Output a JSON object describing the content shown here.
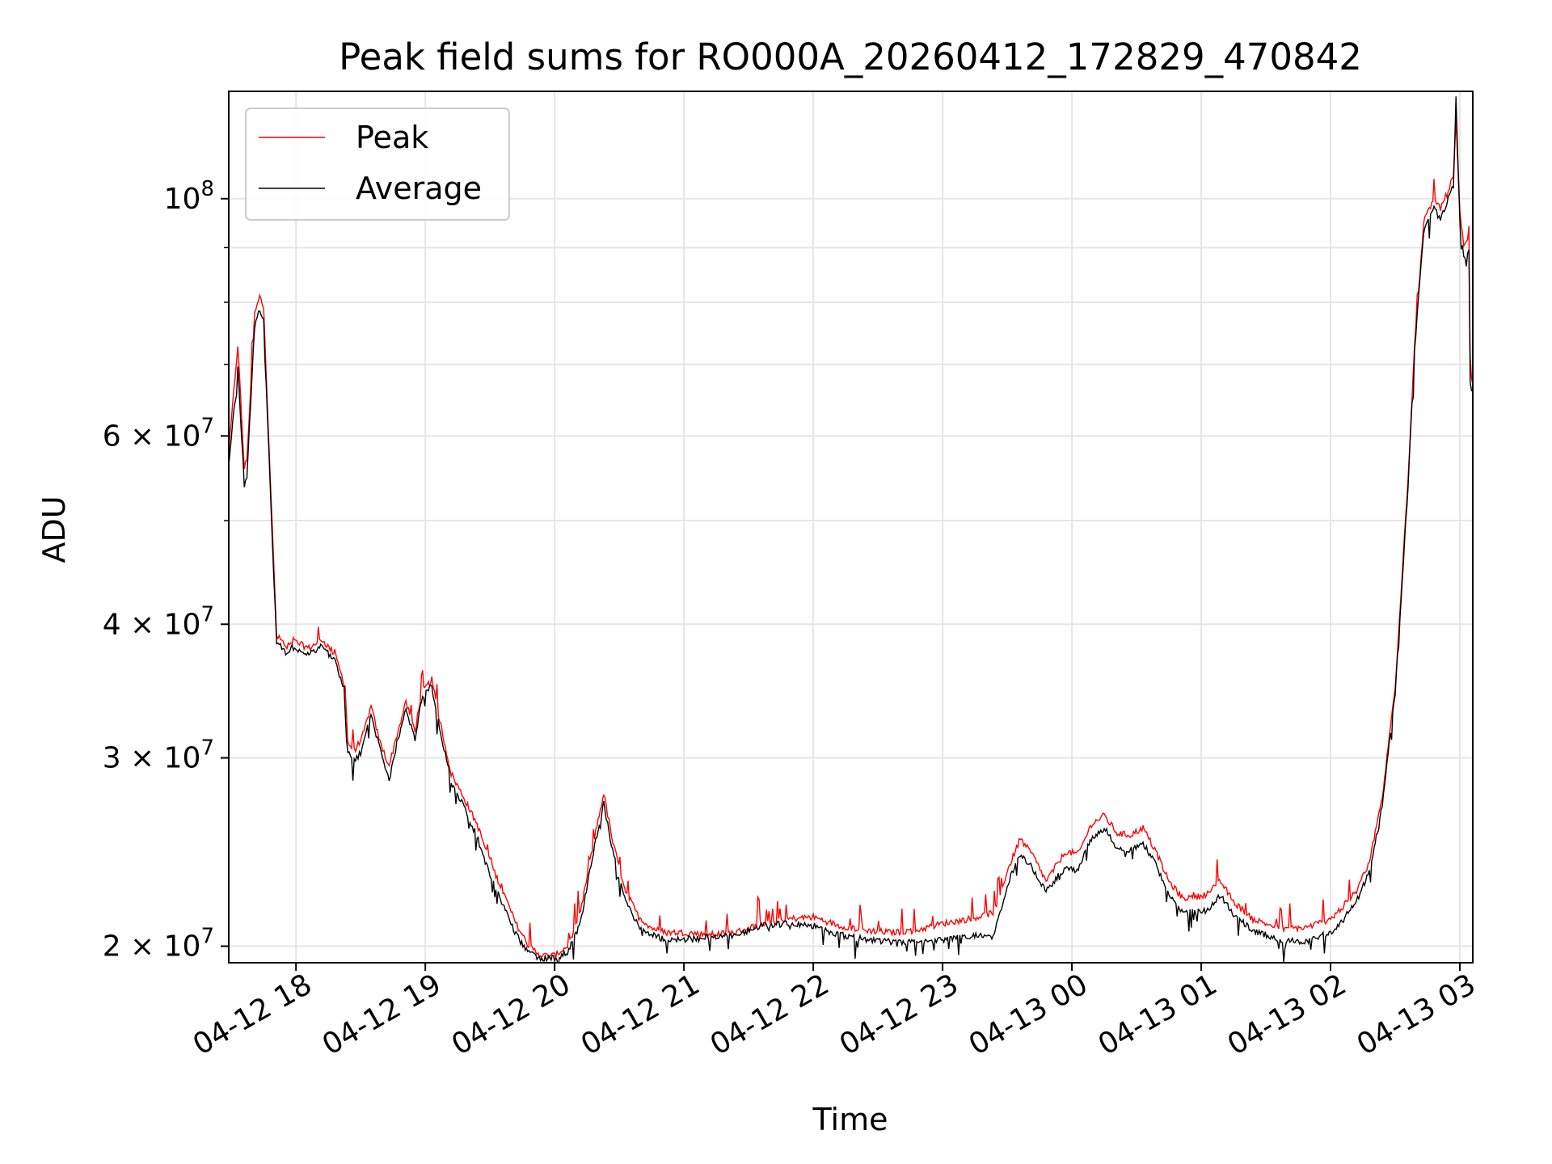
{
  "chart_data": {
    "type": "line",
    "title": "Peak field sums for RO000A_20260412_172829_470842",
    "xlabel": "Time",
    "ylabel": "ADU",
    "yscale": "log",
    "ylim": [
      19300000,
      126000000
    ],
    "xlim_hours": [
      17.48,
      27.1
    ],
    "grid": true,
    "legend": {
      "location": "upper-left"
    },
    "x_ticks": [
      {
        "value": 18,
        "label": "04-12 18"
      },
      {
        "value": 19,
        "label": "04-12 19"
      },
      {
        "value": 20,
        "label": "04-12 20"
      },
      {
        "value": 21,
        "label": "04-12 21"
      },
      {
        "value": 22,
        "label": "04-12 22"
      },
      {
        "value": 23,
        "label": "04-12 23"
      },
      {
        "value": 24,
        "label": "04-13 00"
      },
      {
        "value": 25,
        "label": "04-13 01"
      },
      {
        "value": 26,
        "label": "04-13 02"
      },
      {
        "value": 27,
        "label": "04-13 03"
      }
    ],
    "y_ticks": [
      {
        "value": 20000000,
        "mant": "2",
        "exp": "7"
      },
      {
        "value": 30000000,
        "mant": "3",
        "exp": "7"
      },
      {
        "value": 40000000,
        "mant": "4",
        "exp": "7"
      },
      {
        "value": 60000000,
        "mant": "6",
        "exp": "7"
      },
      {
        "value": 100000000,
        "mant": "",
        "exp": "8"
      }
    ],
    "y_minor": [
      50000000,
      70000000,
      80000000,
      90000000
    ],
    "series": [
      {
        "name": "Peak",
        "color": "#ff0000",
        "x": [
          17.48,
          17.55,
          17.6,
          17.62,
          17.68,
          17.72,
          17.75,
          17.82,
          17.85,
          17.9,
          17.93,
          17.97,
          18.1,
          18.2,
          18.3,
          18.38,
          18.4,
          18.45,
          18.5,
          18.58,
          18.65,
          18.72,
          18.78,
          18.85,
          18.92,
          18.97,
          19.05,
          19.1,
          19.2,
          19.3,
          19.4,
          19.5,
          19.6,
          19.7,
          19.8,
          19.9,
          20.0,
          20.1,
          20.2,
          20.3,
          20.38,
          20.45,
          20.55,
          20.65,
          20.75,
          20.85,
          21.0,
          21.2,
          21.4,
          21.6,
          21.8,
          22.0,
          22.2,
          22.4,
          22.6,
          22.8,
          23.0,
          23.2,
          23.4,
          23.5,
          23.6,
          23.7,
          23.8,
          23.95,
          24.05,
          24.15,
          24.25,
          24.35,
          24.45,
          24.55,
          24.65,
          24.75,
          24.85,
          24.95,
          25.05,
          25.15,
          25.25,
          25.4,
          25.6,
          25.8,
          26.0,
          26.1,
          26.2,
          26.3,
          26.4,
          26.5,
          26.6,
          26.65,
          26.72,
          26.8,
          26.85,
          26.9,
          26.95,
          26.97,
          27.0,
          27.03,
          27.07,
          27.08,
          27.1
        ],
        "y": [
          58000000,
          73000000,
          56000000,
          57000000,
          78000000,
          81000000,
          79000000,
          48000000,
          39000000,
          38500000,
          37800000,
          38600000,
          38000000,
          38700000,
          37500000,
          35000000,
          31000000,
          30500000,
          31000000,
          33500000,
          31000000,
          29500000,
          31500000,
          33800000,
          31800000,
          34500000,
          35500000,
          33000000,
          29000000,
          27500000,
          26000000,
          24000000,
          22500000,
          21000000,
          20000000,
          19600000,
          19600000,
          20000000,
          21500000,
          25000000,
          27800000,
          25000000,
          22500000,
          21300000,
          20800000,
          20600000,
          20600000,
          20500000,
          20600000,
          21000000,
          21200000,
          21300000,
          20900000,
          20700000,
          20600000,
          20700000,
          21000000,
          21200000,
          21500000,
          23500000,
          25200000,
          24300000,
          23000000,
          24500000,
          24400000,
          26000000,
          26500000,
          25500000,
          25400000,
          25800000,
          24500000,
          23000000,
          22200000,
          22200000,
          22400000,
          23000000,
          22000000,
          21200000,
          20800000,
          20800000,
          21200000,
          21800000,
          22500000,
          24000000,
          27500000,
          35000000,
          55000000,
          73000000,
          95000000,
          100000000,
          98000000,
          101000000,
          105000000,
          118000000,
          97000000,
          90000000,
          92000000,
          68000000,
          67000000
        ]
      },
      {
        "name": "Average",
        "color": "#000000",
        "x": [
          17.48,
          17.55,
          17.6,
          17.62,
          17.68,
          17.72,
          17.75,
          17.82,
          17.85,
          17.9,
          17.93,
          17.97,
          18.1,
          18.2,
          18.3,
          18.38,
          18.4,
          18.45,
          18.5,
          18.58,
          18.65,
          18.72,
          18.78,
          18.85,
          18.92,
          18.97,
          19.05,
          19.1,
          19.2,
          19.3,
          19.4,
          19.5,
          19.6,
          19.7,
          19.8,
          19.9,
          20.0,
          20.1,
          20.2,
          20.3,
          20.38,
          20.45,
          20.55,
          20.65,
          20.75,
          20.85,
          21.0,
          21.2,
          21.4,
          21.6,
          21.8,
          22.0,
          22.2,
          22.4,
          22.6,
          22.8,
          23.0,
          23.2,
          23.4,
          23.5,
          23.6,
          23.7,
          23.8,
          23.95,
          24.05,
          24.15,
          24.25,
          24.35,
          24.45,
          24.55,
          24.65,
          24.75,
          24.85,
          24.95,
          25.05,
          25.15,
          25.25,
          25.4,
          25.6,
          25.8,
          26.0,
          26.1,
          26.2,
          26.3,
          26.4,
          26.5,
          26.6,
          26.65,
          26.72,
          26.8,
          26.85,
          26.9,
          26.95,
          26.97,
          27.0,
          27.03,
          27.07,
          27.08,
          27.1
        ],
        "y": [
          56000000,
          70000000,
          54000000,
          55000000,
          76000000,
          79000000,
          77000000,
          47000000,
          38500000,
          38000000,
          37300000,
          38100000,
          37500000,
          38200000,
          37000000,
          34500000,
          30500000,
          29800000,
          30300000,
          33000000,
          30500000,
          28500000,
          31000000,
          33300000,
          31300000,
          34000000,
          35000000,
          32500000,
          28500000,
          27000000,
          25300000,
          23300000,
          21900000,
          20500000,
          19700000,
          19500000,
          19500000,
          19700000,
          21000000,
          24500000,
          27200000,
          24500000,
          22000000,
          20900000,
          20500000,
          20300000,
          20300000,
          20400000,
          20500000,
          20900000,
          21000000,
          20900000,
          20500000,
          20300000,
          20200000,
          20200000,
          20300000,
          20400000,
          20600000,
          22800000,
          24400000,
          23600000,
          22500000,
          23700000,
          23600000,
          25200000,
          25800000,
          24700000,
          24600000,
          25000000,
          23800000,
          22300000,
          21600000,
          21500000,
          21600000,
          22300000,
          21400000,
          20700000,
          20300000,
          20200000,
          20600000,
          21200000,
          22000000,
          23500000,
          27000000,
          34500000,
          54000000,
          72000000,
          93000000,
          98000000,
          96000000,
          99000000,
          103000000,
          125000000,
          95000000,
          88000000,
          90000000,
          67000000,
          66000000
        ]
      }
    ]
  }
}
